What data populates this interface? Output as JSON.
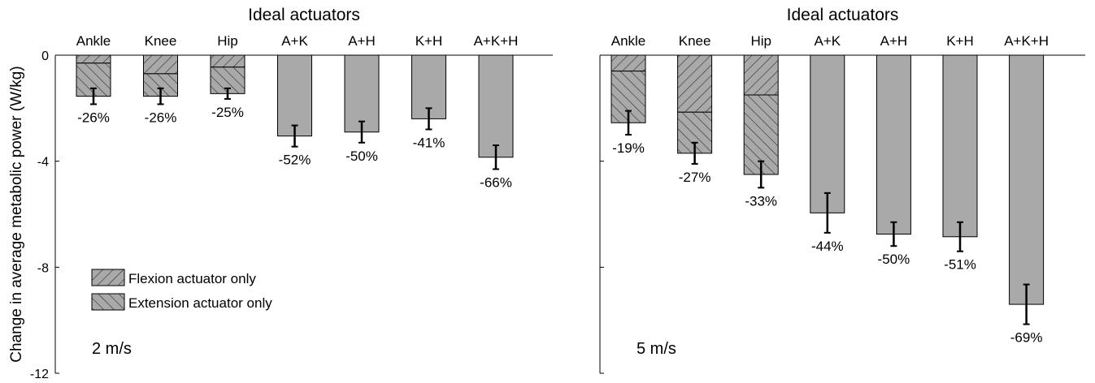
{
  "colors": {
    "bar_fill": "#a9a9a9",
    "bar_stroke": "#000000",
    "axis": "#000000",
    "background": "#ffffff"
  },
  "ylabel": "Change in average metabolic power (W/kg)",
  "legend": {
    "placement": "lower-left",
    "items": [
      {
        "label": "Flexion actuator only",
        "pattern": "hatch-flexion"
      },
      {
        "label": "Extension actuator only",
        "pattern": "hatch-extension"
      }
    ]
  },
  "chart_data": [
    {
      "type": "bar",
      "title": "Ideal actuators",
      "annotation": "2 m/s",
      "categories": [
        "Ankle",
        "Knee",
        "Hip",
        "A+K",
        "A+H",
        "K+H",
        "A+K+H"
      ],
      "values": [
        -1.55,
        -1.55,
        -1.45,
        -3.05,
        -2.9,
        -2.4,
        -3.85
      ],
      "errors": [
        0.3,
        0.3,
        0.2,
        0.4,
        0.4,
        0.4,
        0.45
      ],
      "flexion_part": [
        -0.3,
        -0.7,
        -0.45,
        null,
        null,
        null,
        null
      ],
      "pct_labels": [
        "-26%",
        "-26%",
        "-25%",
        "-52%",
        "-50%",
        "-41%",
        "-66%"
      ],
      "ylim": [
        -12,
        0
      ],
      "yticks": [
        0,
        -4,
        -8,
        -12
      ],
      "ytick_labels": [
        "0",
        "-4",
        "-8",
        "-12"
      ],
      "grid": false
    },
    {
      "type": "bar",
      "title": "Ideal actuators",
      "annotation": "5 m/s",
      "categories": [
        "Ankle",
        "Knee",
        "Hip",
        "A+K",
        "A+H",
        "K+H",
        "A+K+H"
      ],
      "values": [
        -2.55,
        -3.7,
        -4.5,
        -5.95,
        -6.75,
        -6.85,
        -9.4
      ],
      "errors": [
        0.45,
        0.4,
        0.5,
        0.75,
        0.45,
        0.55,
        0.75
      ],
      "flexion_part": [
        -0.6,
        -2.15,
        -1.5,
        null,
        null,
        null,
        null
      ],
      "pct_labels": [
        "-19%",
        "-27%",
        "-33%",
        "-44%",
        "-50%",
        "-51%",
        "-69%"
      ],
      "ylim": [
        -12,
        0
      ],
      "yticks": [
        0,
        -4,
        -8,
        -12
      ],
      "grid": false
    }
  ]
}
